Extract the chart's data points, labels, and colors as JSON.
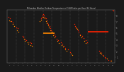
{
  "title": "Milwaukee Weather Outdoor Temperature vs THSW Index per Hour (24 Hours)",
  "background_color": "#1a1a1a",
  "plot_bg_color": "#1a1a1a",
  "grid_color": "#555555",
  "temp_color": "#ff2200",
  "thsw_color": "#ff8800",
  "xlim": [
    0,
    24
  ],
  "ylim": [
    0,
    9
  ],
  "vgrid_positions": [
    2,
    4,
    6,
    8,
    10,
    12,
    14,
    16,
    18,
    20,
    22
  ],
  "scatter_temp": [
    [
      0.3,
      7.8
    ],
    [
      0.7,
      7.5
    ],
    [
      1.0,
      7.0
    ],
    [
      1.3,
      6.8
    ],
    [
      2.0,
      6.0
    ],
    [
      2.3,
      5.8
    ],
    [
      3.5,
      4.5
    ],
    [
      3.7,
      4.3
    ],
    [
      4.0,
      4.0
    ],
    [
      4.3,
      3.8
    ],
    [
      5.0,
      3.5
    ],
    [
      5.3,
      3.3
    ],
    [
      7.5,
      7.5
    ],
    [
      7.7,
      7.8
    ],
    [
      7.9,
      8.0
    ],
    [
      8.0,
      8.2
    ],
    [
      8.2,
      8.0
    ],
    [
      8.4,
      7.8
    ],
    [
      8.6,
      7.5
    ],
    [
      8.8,
      7.2
    ],
    [
      9.0,
      6.8
    ],
    [
      9.2,
      6.5
    ],
    [
      9.4,
      6.2
    ],
    [
      9.6,
      5.8
    ],
    [
      9.8,
      5.5
    ],
    [
      10.0,
      5.2
    ],
    [
      10.2,
      5.0
    ],
    [
      10.5,
      4.8
    ],
    [
      10.7,
      4.5
    ],
    [
      11.0,
      4.0
    ],
    [
      11.3,
      3.8
    ],
    [
      12.0,
      3.5
    ],
    [
      12.3,
      3.2
    ],
    [
      12.7,
      2.8
    ],
    [
      13.0,
      2.5
    ],
    [
      13.5,
      2.2
    ],
    [
      14.0,
      1.8
    ],
    [
      15.0,
      6.5
    ],
    [
      15.2,
      6.2
    ],
    [
      15.5,
      5.8
    ],
    [
      15.7,
      5.5
    ],
    [
      16.0,
      5.2
    ],
    [
      16.3,
      4.8
    ],
    [
      16.7,
      4.5
    ],
    [
      17.0,
      4.2
    ],
    [
      17.5,
      3.8
    ],
    [
      17.8,
      3.5
    ],
    [
      20.5,
      2.0
    ],
    [
      20.8,
      1.8
    ],
    [
      21.0,
      1.5
    ],
    [
      21.3,
      1.3
    ],
    [
      21.7,
      1.0
    ],
    [
      22.0,
      0.8
    ],
    [
      22.5,
      0.5
    ],
    [
      23.0,
      0.3
    ],
    [
      23.5,
      9.0
    ],
    [
      23.7,
      8.8
    ]
  ],
  "scatter_thsw": [
    [
      0.5,
      7.2
    ],
    [
      0.8,
      7.0
    ],
    [
      1.2,
      6.5
    ],
    [
      1.5,
      6.2
    ],
    [
      2.2,
      5.5
    ],
    [
      2.5,
      5.2
    ],
    [
      3.8,
      4.0
    ],
    [
      4.0,
      3.7
    ],
    [
      4.5,
      3.5
    ],
    [
      4.7,
      3.2
    ],
    [
      5.2,
      3.0
    ],
    [
      5.5,
      2.8
    ],
    [
      7.3,
      7.0
    ],
    [
      7.6,
      7.3
    ],
    [
      8.1,
      7.7
    ],
    [
      8.3,
      7.5
    ],
    [
      8.7,
      7.0
    ],
    [
      8.9,
      6.7
    ],
    [
      9.1,
      6.3
    ],
    [
      9.3,
      6.0
    ],
    [
      9.7,
      5.5
    ],
    [
      9.9,
      5.2
    ],
    [
      10.3,
      4.7
    ],
    [
      10.6,
      4.3
    ],
    [
      11.2,
      3.7
    ],
    [
      11.5,
      3.3
    ],
    [
      12.2,
      3.0
    ],
    [
      12.5,
      2.7
    ],
    [
      13.0,
      2.3
    ],
    [
      13.3,
      2.0
    ],
    [
      14.2,
      1.5
    ],
    [
      14.5,
      1.3
    ],
    [
      15.3,
      6.0
    ],
    [
      15.6,
      5.7
    ],
    [
      16.2,
      4.7
    ],
    [
      16.5,
      4.3
    ],
    [
      17.2,
      3.7
    ],
    [
      17.5,
      3.3
    ],
    [
      20.7,
      1.7
    ],
    [
      21.0,
      1.5
    ],
    [
      21.5,
      1.2
    ],
    [
      22.2,
      0.7
    ],
    [
      23.2,
      0.3
    ]
  ],
  "orange_line": [
    8.0,
    10.5,
    5.0
  ],
  "red_line": [
    18.0,
    22.5,
    5.2
  ],
  "xtick_labels": [
    "1",
    "2",
    "3",
    "4",
    "5",
    "6",
    "7",
    "8",
    "9",
    "10",
    "11",
    "12",
    "1",
    "2",
    "3",
    "4",
    "5",
    "6",
    "7",
    "8",
    "9",
    "10",
    "11",
    "12"
  ],
  "ytick_values": [
    1,
    2,
    3,
    4,
    5,
    6,
    7,
    8
  ],
  "ytick_labels": [
    "1",
    "2",
    "3",
    "4",
    "5",
    "6",
    "7",
    "8"
  ]
}
